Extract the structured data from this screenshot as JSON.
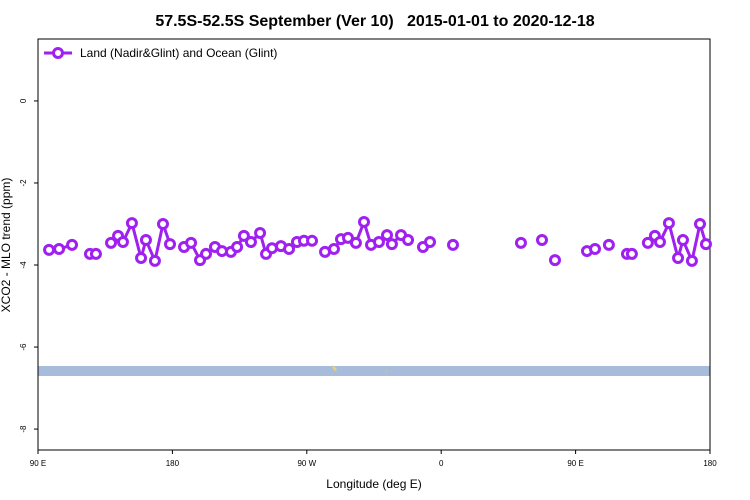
{
  "chart_data": {
    "type": "line",
    "title": "57.5S-52.5S September (Ver 10)   2015-01-01 to 2020-12-18",
    "xlabel": "Longitude (deg E)",
    "ylabel": "XCO2 - MLO trend (ppm)",
    "xlim": [
      90,
      540
    ],
    "ylim": [
      -8.51,
      1.51
    ],
    "xticks": [
      {
        "value": 90,
        "label": "90 E"
      },
      180,
      {
        "value": 270,
        "label": "90 W"
      },
      {
        "value": 360,
        "label": "0"
      },
      {
        "value": 450,
        "label": "90 E"
      },
      {
        "value": 540,
        "label": "180"
      }
    ],
    "yticks": [
      0,
      -2,
      -4,
      -6,
      -8
    ],
    "legend": "top-left",
    "series": [
      {
        "name": "Land (Nadir&Glint) and Ocean (Glint)",
        "color": "#a020f0",
        "x": [
          97.4,
          104.1,
          112.8,
          null,
          124.8,
          128.8,
          null,
          138.9,
          143.6,
          146.9,
          152.9,
          159.0,
          162.3,
          168.3,
          173.7,
          178.4,
          null,
          187.8,
          192.5,
          198.5,
          202.5,
          208.5,
          213.2,
          219.2,
          223.3,
          227.9,
          232.6,
          238.7,
          242.7,
          246.7,
          252.7,
          258.1,
          263.4,
          268.1,
          273.5,
          null,
          282.2,
          288.2,
          292.9,
          297.6,
          302.9,
          308.3,
          313.0,
          318.3,
          323.7,
          327.0,
          333.1,
          337.8,
          null,
          347.8,
          352.5,
          null,
          367.9,
          null,
          413.4,
          null,
          427.5,
          null,
          436.2,
          null,
          457.6,
          463.0,
          null,
          472.3,
          null,
          484.4,
          487.7,
          null,
          498.4,
          503.1,
          506.5,
          512.5,
          518.6,
          521.9,
          527.9,
          533.3,
          537.3
        ],
        "values": [
          -3.63,
          -3.61,
          -3.51,
          null,
          -3.73,
          -3.73,
          null,
          -3.46,
          -3.29,
          -3.44,
          -2.98,
          -3.83,
          -3.39,
          -3.9,
          -3.0,
          -3.49,
          null,
          -3.56,
          -3.46,
          -3.88,
          -3.73,
          -3.56,
          -3.66,
          -3.68,
          -3.56,
          -3.29,
          -3.44,
          -3.22,
          -3.73,
          -3.59,
          -3.54,
          -3.61,
          -3.44,
          -3.41,
          -3.41,
          null,
          -3.68,
          -3.61,
          -3.37,
          -3.34,
          -3.46,
          -2.95,
          -3.51,
          -3.44,
          -3.27,
          -3.49,
          -3.27,
          -3.39,
          null,
          -3.56,
          -3.44,
          null,
          -3.51,
          null,
          -3.46,
          null,
          -3.39,
          null,
          -3.88,
          null,
          -3.66,
          -3.61,
          null,
          -3.51,
          null,
          -3.73,
          -3.73,
          null,
          -3.46,
          -3.29,
          -3.44,
          -2.98,
          -3.83,
          -3.39,
          -3.9,
          -3.0,
          -3.49
        ]
      }
    ]
  }
}
